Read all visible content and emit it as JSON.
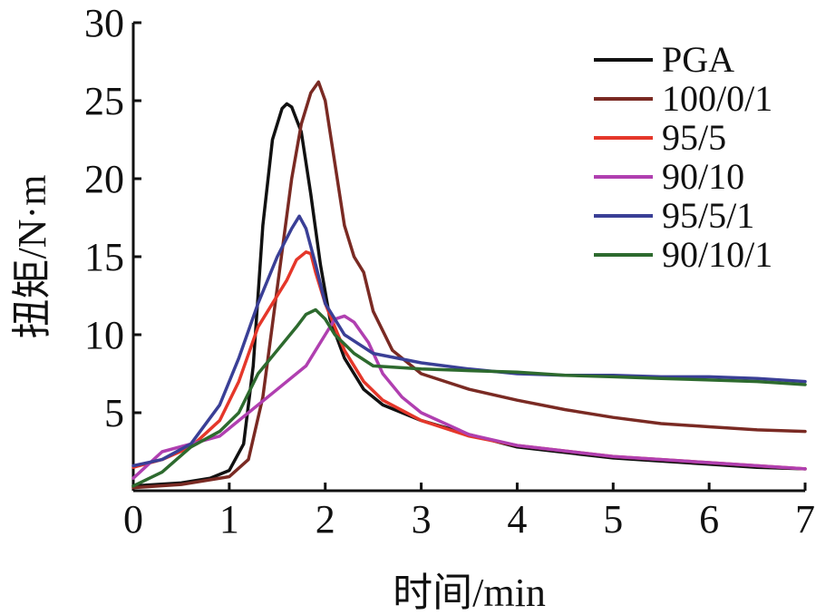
{
  "chart_data": {
    "type": "line",
    "title": "",
    "xlabel": "时间/min",
    "ylabel": "扭矩/N·m",
    "xlim": [
      0,
      7
    ],
    "ylim": [
      0,
      30
    ],
    "xticks": [
      "0",
      "1",
      "2",
      "3",
      "4",
      "5",
      "6",
      "7"
    ],
    "yticks": [
      "5",
      "10",
      "15",
      "20",
      "25",
      "30"
    ],
    "grid": false,
    "legend_position": "top-right",
    "series": [
      {
        "name": "PGA",
        "color": "#111111",
        "x": [
          0,
          0.5,
          0.8,
          1.0,
          1.15,
          1.25,
          1.35,
          1.45,
          1.55,
          1.6,
          1.65,
          1.75,
          1.85,
          1.95,
          2.05,
          2.2,
          2.4,
          2.6,
          3.0,
          3.5,
          4.0,
          5.0,
          6.0,
          6.5,
          7.0
        ],
        "y": [
          0.3,
          0.5,
          0.8,
          1.3,
          3.0,
          8.0,
          17.0,
          22.5,
          24.5,
          24.8,
          24.6,
          23.0,
          19.0,
          14.5,
          11.0,
          8.5,
          6.5,
          5.5,
          4.5,
          3.6,
          2.8,
          2.1,
          1.7,
          1.5,
          1.4
        ]
      },
      {
        "name": "100/0/1",
        "color": "#7a2a23",
        "x": [
          0,
          0.5,
          1.0,
          1.2,
          1.35,
          1.5,
          1.65,
          1.75,
          1.85,
          1.93,
          2.0,
          2.1,
          2.2,
          2.3,
          2.4,
          2.5,
          2.7,
          3.0,
          3.5,
          4.0,
          4.5,
          5.0,
          5.5,
          6.0,
          6.5,
          7.0
        ],
        "y": [
          0.2,
          0.4,
          0.9,
          2.0,
          6.0,
          13.0,
          20.0,
          23.5,
          25.5,
          26.2,
          25.0,
          21.0,
          17.0,
          15.0,
          14.0,
          11.5,
          9.0,
          7.5,
          6.5,
          5.8,
          5.2,
          4.7,
          4.3,
          4.1,
          3.9,
          3.8
        ]
      },
      {
        "name": "95/5",
        "color": "#e5372a",
        "x": [
          0,
          0.3,
          0.6,
          0.9,
          1.1,
          1.3,
          1.45,
          1.6,
          1.7,
          1.8,
          1.85,
          1.9,
          2.0,
          2.2,
          2.4,
          2.6,
          3.0,
          3.5,
          4.0,
          5.0,
          6.0,
          7.0
        ],
        "y": [
          1.5,
          2.0,
          2.8,
          4.5,
          7.0,
          10.5,
          12.0,
          13.5,
          14.8,
          15.3,
          15.2,
          14.0,
          12.0,
          9.0,
          7.0,
          5.8,
          4.5,
          3.5,
          2.9,
          2.2,
          1.8,
          1.4
        ]
      },
      {
        "name": "90/10",
        "color": "#b03fb0",
        "x": [
          0,
          0.3,
          0.6,
          0.9,
          1.2,
          1.5,
          1.8,
          2.0,
          2.1,
          2.2,
          2.3,
          2.45,
          2.6,
          2.8,
          3.0,
          3.5,
          4.0,
          5.0,
          6.0,
          7.0
        ],
        "y": [
          0.8,
          2.5,
          3.0,
          3.5,
          5.0,
          6.5,
          8.0,
          10.0,
          11.0,
          11.2,
          10.8,
          9.5,
          7.5,
          6.0,
          5.0,
          3.6,
          2.9,
          2.2,
          1.8,
          1.4
        ]
      },
      {
        "name": "95/5/1",
        "color": "#3a3f96",
        "x": [
          0,
          0.3,
          0.6,
          0.9,
          1.1,
          1.3,
          1.5,
          1.65,
          1.73,
          1.8,
          1.9,
          2.0,
          2.2,
          2.5,
          3.0,
          3.5,
          4.0,
          4.5,
          5.0,
          5.5,
          6.0,
          6.5,
          7.0
        ],
        "y": [
          1.6,
          2.0,
          3.0,
          5.5,
          8.5,
          12.0,
          15.0,
          16.8,
          17.6,
          16.8,
          14.5,
          12.0,
          10.0,
          8.8,
          8.2,
          7.8,
          7.5,
          7.4,
          7.4,
          7.3,
          7.3,
          7.2,
          7.0
        ]
      },
      {
        "name": "90/10/1",
        "color": "#2d6a2e",
        "x": [
          0,
          0.3,
          0.6,
          0.9,
          1.1,
          1.3,
          1.5,
          1.7,
          1.8,
          1.9,
          2.0,
          2.1,
          2.3,
          2.5,
          3.0,
          3.5,
          4.0,
          4.5,
          5.0,
          5.5,
          6.0,
          6.5,
          7.0
        ],
        "y": [
          0.3,
          1.2,
          2.8,
          3.8,
          5.0,
          7.5,
          9.0,
          10.5,
          11.3,
          11.6,
          11.0,
          10.0,
          8.8,
          8.0,
          7.8,
          7.7,
          7.6,
          7.4,
          7.3,
          7.2,
          7.1,
          7.0,
          6.8
        ]
      }
    ]
  }
}
